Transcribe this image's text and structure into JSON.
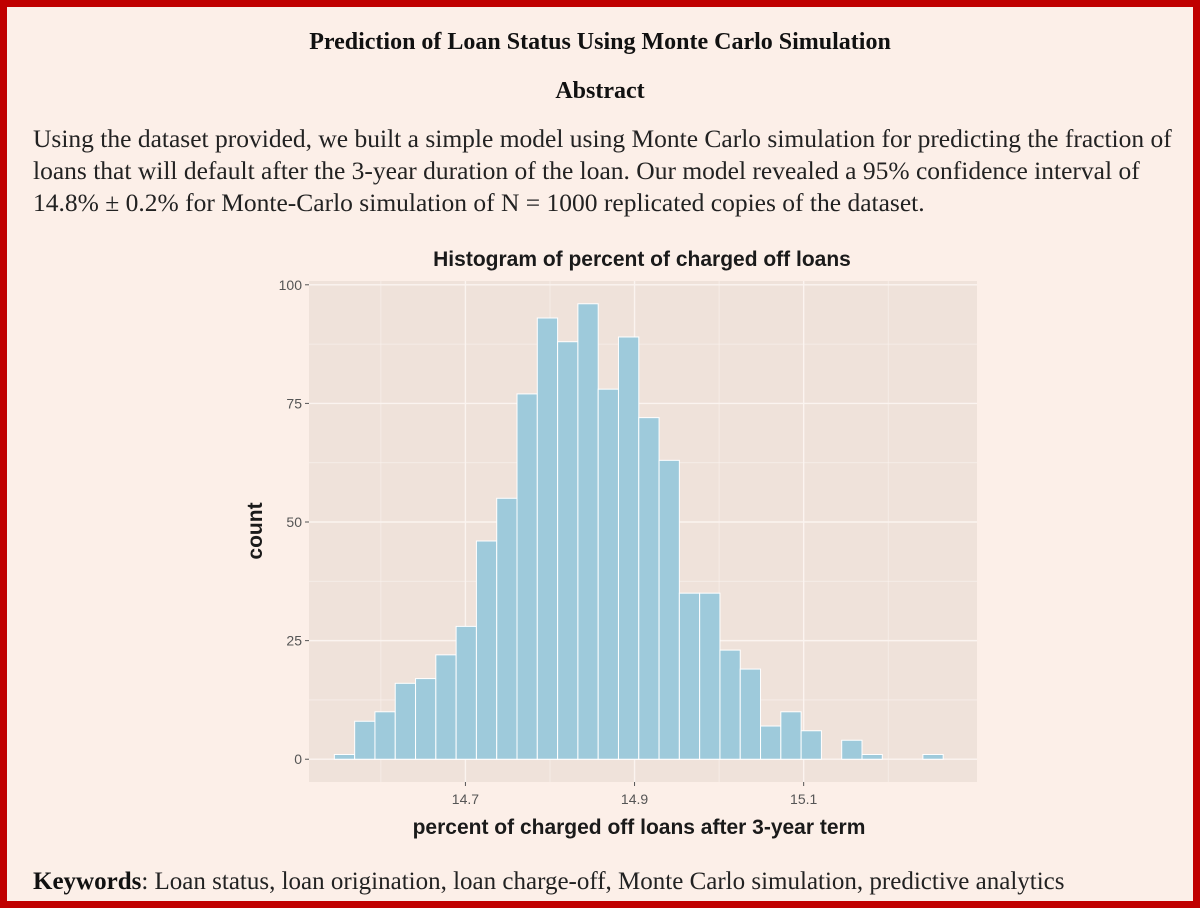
{
  "document": {
    "title": "Prediction of Loan Status Using Monte Carlo Simulation",
    "abstract_heading": "Abstract",
    "abstract_text": "Using the dataset provided, we built a simple model using Monte Carlo simulation for predicting the fraction of loans that will default after the 3-year duration of the loan. Our model revealed a 95% confidence interval of 14.8% ± 0.2% for Monte-Carlo simulation of N = 1000 replicated copies of the dataset.",
    "keywords_label": "Keywords",
    "keywords_text": ": Loan status, loan origination, loan charge-off, Monte Carlo simulation, predictive analytics"
  },
  "colors": {
    "border": "#c00000",
    "page_background": "#fcefe8",
    "panel_background": "#efe2da",
    "grid_major": "#fbf4f0",
    "bar_fill": "#9ecadb",
    "bar_outline": "#ffffff"
  },
  "chart_data": {
    "type": "bar",
    "subtype": "histogram",
    "title": "Histogram of percent of charged off loans",
    "xlabel": "percent of charged off loans after 3-year term",
    "ylabel": "count",
    "xlim": [
      14.515,
      15.305
    ],
    "ylim": [
      -4.8,
      100.8
    ],
    "x_ticks": [
      14.7,
      14.9,
      15.1
    ],
    "x_tick_labels": [
      "14.7",
      "14.9",
      "15.1"
    ],
    "y_ticks": [
      0,
      25,
      50,
      75,
      100
    ],
    "y_tick_labels": [
      "0",
      "25",
      "50",
      "75",
      "100"
    ],
    "grid": true,
    "bin_width": 0.024,
    "bin_start": 14.545,
    "values": [
      1,
      8,
      10,
      16,
      17,
      22,
      28,
      46,
      55,
      77,
      93,
      88,
      96,
      78,
      89,
      72,
      63,
      35,
      35,
      23,
      19,
      7,
      10,
      6,
      0,
      4,
      1,
      0,
      0,
      1
    ]
  }
}
